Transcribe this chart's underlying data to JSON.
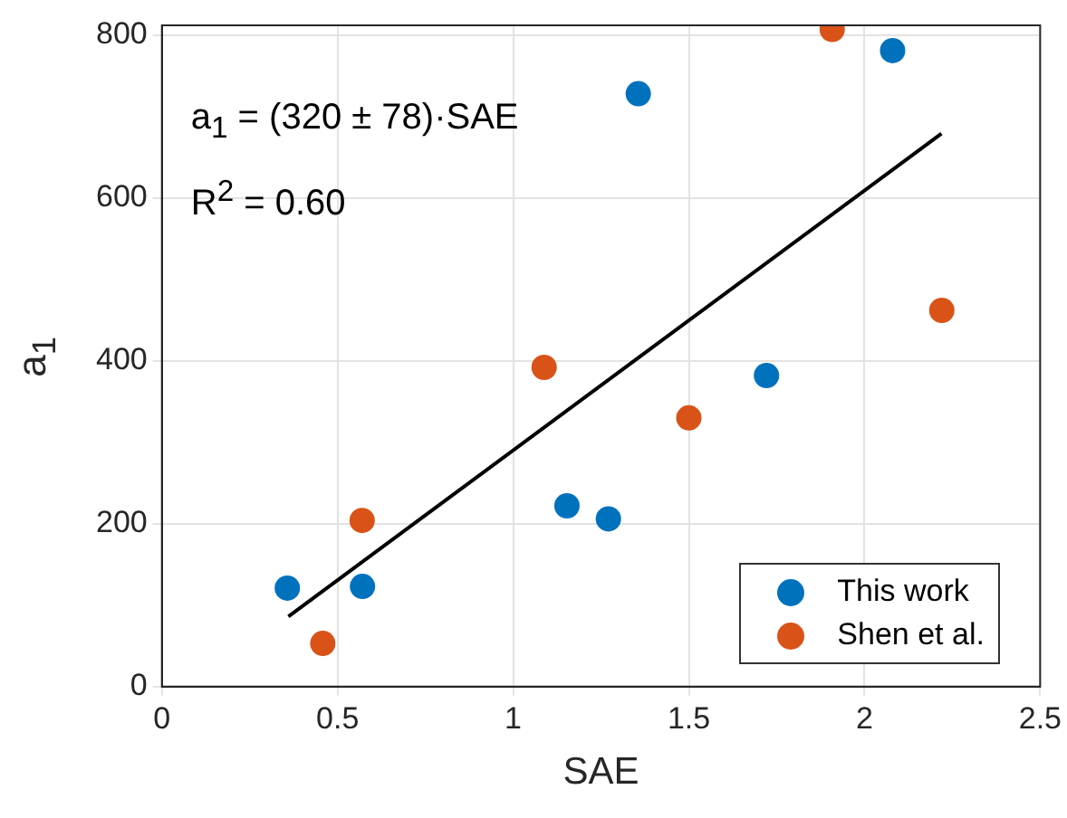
{
  "chart_data": {
    "type": "scatter",
    "xlabel": "SAE",
    "ylabel": "a$_{1}$",
    "xlim": [
      0,
      2.5
    ],
    "xticks": [
      0,
      0.5,
      1,
      1.5,
      2,
      2.5
    ],
    "ylim": [
      0,
      812
    ],
    "yticks": [
      0,
      200,
      400,
      600,
      800
    ],
    "grid": true,
    "legend": "bottom right",
    "marker": "circle",
    "annotations": [
      "a$_{1}$ = (320 ± 78)·SAE",
      "R$^{2}$ = 0.60"
    ],
    "series": [
      {
        "name": "This work",
        "color": "#0072bd",
        "x": [
          0.357,
          0.571,
          1.153,
          1.271,
          1.356,
          1.721,
          2.08
        ],
        "values": [
          121,
          123,
          222,
          206,
          728,
          382,
          781
        ]
      },
      {
        "name": "Shen et al.",
        "color": "#d95319",
        "x": [
          0.458,
          0.57,
          1.088,
          1.5,
          1.908,
          2.22
        ],
        "values": [
          53,
          204,
          392,
          330,
          807,
          462
        ]
      },
      {
        "type": "line",
        "color": "#000000",
        "marker": "none",
        "x": [
          0.36,
          2.219
        ],
        "values": [
          86,
          679
        ]
      }
    ]
  }
}
